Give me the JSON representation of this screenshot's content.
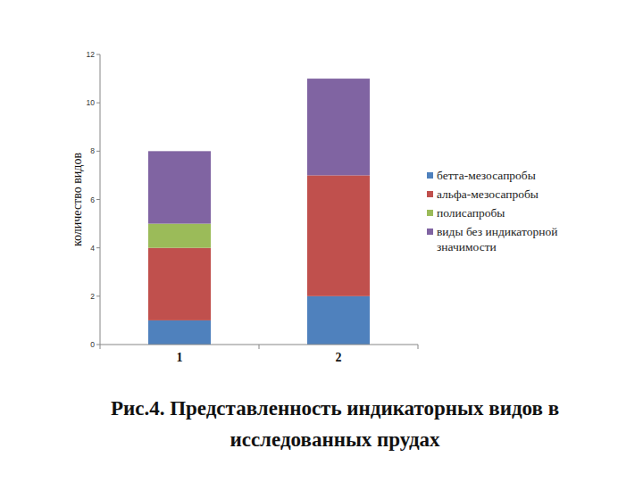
{
  "chart_data": {
    "type": "bar",
    "stacked": true,
    "title": "Рис.4. Представленность индикаторных видов в исследованных прудах",
    "y_label": "количество видов",
    "categories": [
      "1",
      "2"
    ],
    "series": [
      {
        "name": "бетта-мезосапробы",
        "color": "#4f81bd",
        "values": [
          1,
          2
        ]
      },
      {
        "name": "альфа-мезосапробы",
        "color": "#c0504d",
        "values": [
          3,
          5
        ]
      },
      {
        "name": "полисапробы",
        "color": "#9bbb59",
        "values": [
          1,
          0
        ]
      },
      {
        "name": "виды без индикаторной значимости",
        "color": "#8064a2",
        "values": [
          3,
          4
        ]
      }
    ],
    "ylim": [
      0,
      12
    ],
    "yticks": [
      0,
      2,
      4,
      6,
      8,
      10,
      12
    ],
    "grid": false,
    "legend": "right"
  }
}
